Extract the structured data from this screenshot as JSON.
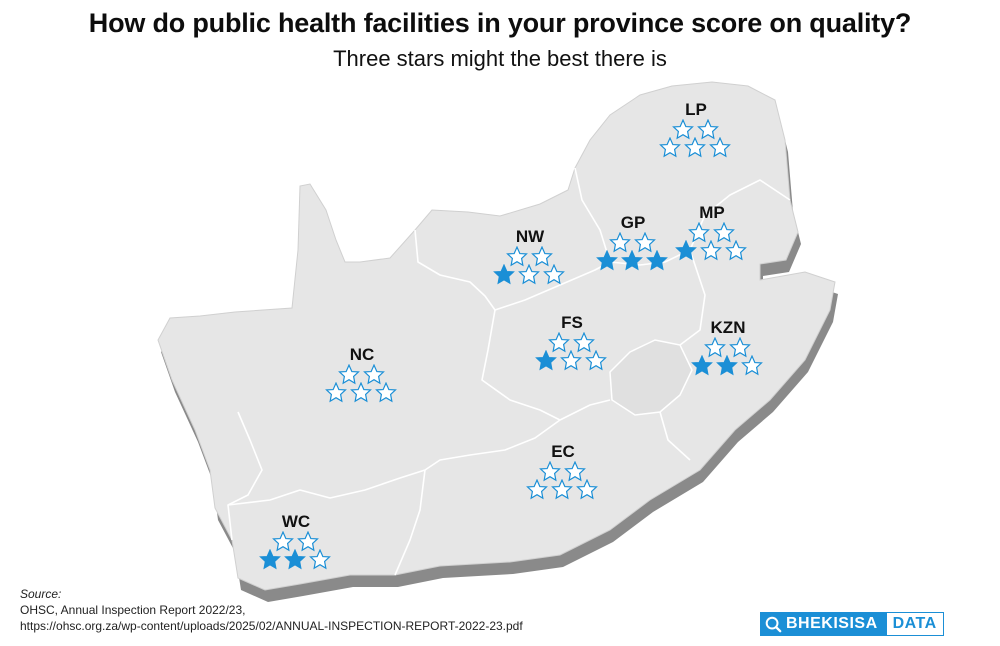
{
  "header": {
    "title": "How do public health facilities in your province score on quality?",
    "subtitle": "Three stars might the best there is"
  },
  "map": {
    "land_color": "#e6e6e6",
    "shadow_color": "#8a8a8a",
    "border_color": "#ffffff",
    "star_color": "#1b8fd6",
    "max_stars": 5,
    "provinces": [
      {
        "code": "LP",
        "rating": 0
      },
      {
        "code": "MP",
        "rating": 1
      },
      {
        "code": "GP",
        "rating": 3
      },
      {
        "code": "NW",
        "rating": 1
      },
      {
        "code": "FS",
        "rating": 1
      },
      {
        "code": "KZN",
        "rating": 2.5
      },
      {
        "code": "NC",
        "rating": 0
      },
      {
        "code": "EC",
        "rating": 0.5
      },
      {
        "code": "WC",
        "rating": 2.5
      }
    ]
  },
  "source": {
    "heading": "Source:",
    "line1": "OHSC, Annual Inspection Report 2022/23,",
    "line2": " https://ohsc.org.za/wp-content/uploads/2025/02/ANNUAL-INSPECTION-REPORT-2022-23.pdf"
  },
  "logo": {
    "left_text": "BHEKISISA",
    "right_text": "DATA"
  }
}
